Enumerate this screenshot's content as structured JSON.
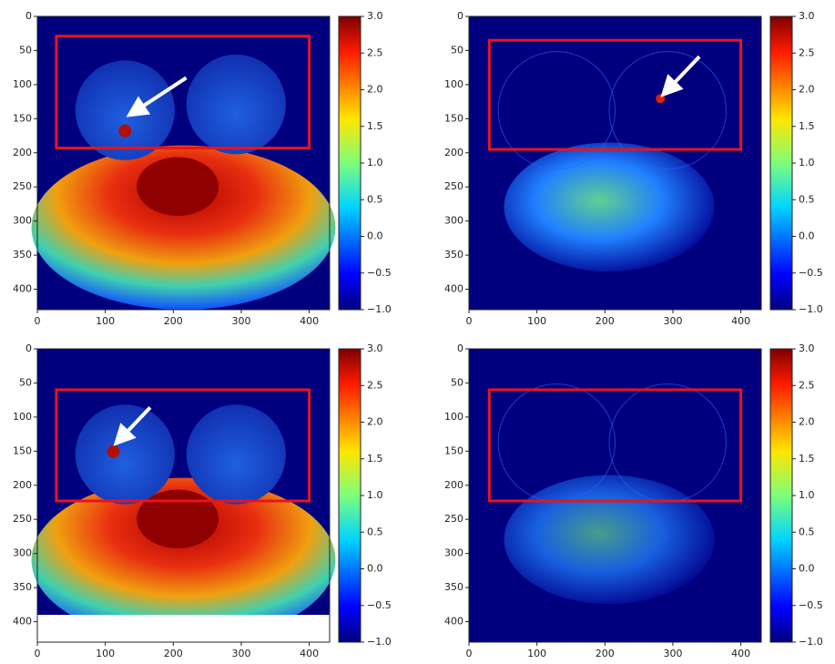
{
  "chart_data": [
    {
      "type": "heatmap",
      "xlim": [
        0,
        430
      ],
      "ylim": [
        0,
        430
      ],
      "y_inverted": true,
      "xticks": [
        0,
        100,
        200,
        300,
        400
      ],
      "yticks": [
        0,
        50,
        100,
        150,
        200,
        250,
        300,
        350,
        400
      ],
      "colorbar": {
        "lim": [
          -1,
          3
        ],
        "ticks": [
          {
            "value": -1,
            "label": "−1.0"
          },
          {
            "value": -0.5,
            "label": "−0.5"
          },
          {
            "value": 0,
            "label": "0.0"
          },
          0.5,
          {
            "value": 1,
            "label": "1.0"
          },
          1.5,
          {
            "value": 2,
            "label": "2.0"
          },
          2.5,
          {
            "value": 3,
            "label": "3.0"
          }
        ]
      },
      "box": {
        "x": [
          28,
          400
        ],
        "y": [
          29,
          193
        ],
        "color": "#e8141b"
      },
      "arrow": {
        "from": [
          219,
          90
        ],
        "to": [
          144,
          139
        ],
        "color": "#ffffff"
      }
    },
    {
      "type": "heatmap",
      "xlim": [
        0,
        430
      ],
      "ylim": [
        0,
        430
      ],
      "y_inverted": true,
      "xticks": [
        0,
        100,
        200,
        300,
        400
      ],
      "yticks": [
        0,
        50,
        100,
        150,
        200,
        250,
        300,
        350,
        400
      ],
      "colorbar": {
        "lim": [
          -1,
          3
        ],
        "ticks": [
          {
            "value": -1,
            "label": "−1.0"
          },
          {
            "value": -0.5,
            "label": "−0.5"
          },
          {
            "value": 0,
            "label": "0.0"
          },
          0.5,
          {
            "value": 1,
            "label": "1.0"
          },
          1.5,
          {
            "value": 2,
            "label": "2.0"
          },
          2.5,
          {
            "value": 3,
            "label": "3.0"
          }
        ]
      },
      "box": {
        "x": [
          30,
          400
        ],
        "y": [
          35,
          195
        ],
        "color": "#e8141b"
      },
      "arrow": {
        "from": [
          339,
          59
        ],
        "to": [
          293,
          107
        ],
        "color": "#ffffff"
      }
    },
    {
      "type": "heatmap",
      "xlim": [
        0,
        430
      ],
      "ylim": [
        0,
        430
      ],
      "y_inverted": true,
      "xticks": [
        0,
        100,
        200,
        300,
        400
      ],
      "yticks": [
        0,
        50,
        100,
        150,
        200,
        250,
        300,
        350,
        400
      ],
      "colorbar": {
        "lim": [
          -1,
          3
        ],
        "ticks": [
          {
            "value": -1,
            "label": "−1.0"
          },
          {
            "value": -0.5,
            "label": "−0.5"
          },
          {
            "value": 0,
            "label": "0.0"
          },
          0.5,
          {
            "value": 1,
            "label": "1.0"
          },
          1.5,
          {
            "value": 2,
            "label": "2.0"
          },
          2.5,
          {
            "value": 3,
            "label": "3.0"
          }
        ]
      },
      "box": {
        "x": [
          28,
          400
        ],
        "y": [
          60,
          223
        ],
        "color": "#e8141b"
      },
      "arrow": {
        "from": [
          166,
          86
        ],
        "to": [
          123,
          131
        ],
        "color": "#ffffff"
      }
    },
    {
      "type": "heatmap",
      "xlim": [
        0,
        430
      ],
      "ylim": [
        0,
        430
      ],
      "y_inverted": true,
      "xticks": [
        0,
        100,
        200,
        300,
        400
      ],
      "yticks": [
        0,
        50,
        100,
        150,
        200,
        250,
        300,
        350,
        400
      ],
      "colorbar": {
        "lim": [
          -1,
          3
        ],
        "ticks": [
          {
            "value": -1,
            "label": "−1.0"
          },
          {
            "value": -0.5,
            "label": "−0.5"
          },
          {
            "value": 0,
            "label": "0.0"
          },
          0.5,
          {
            "value": 1,
            "label": "1.0"
          },
          1.5,
          {
            "value": 2,
            "label": "2.0"
          },
          2.5,
          {
            "value": 3,
            "label": "3.0"
          }
        ]
      },
      "box": {
        "x": [
          30,
          400
        ],
        "y": [
          60,
          223
        ],
        "color": "#e8141b"
      }
    }
  ]
}
